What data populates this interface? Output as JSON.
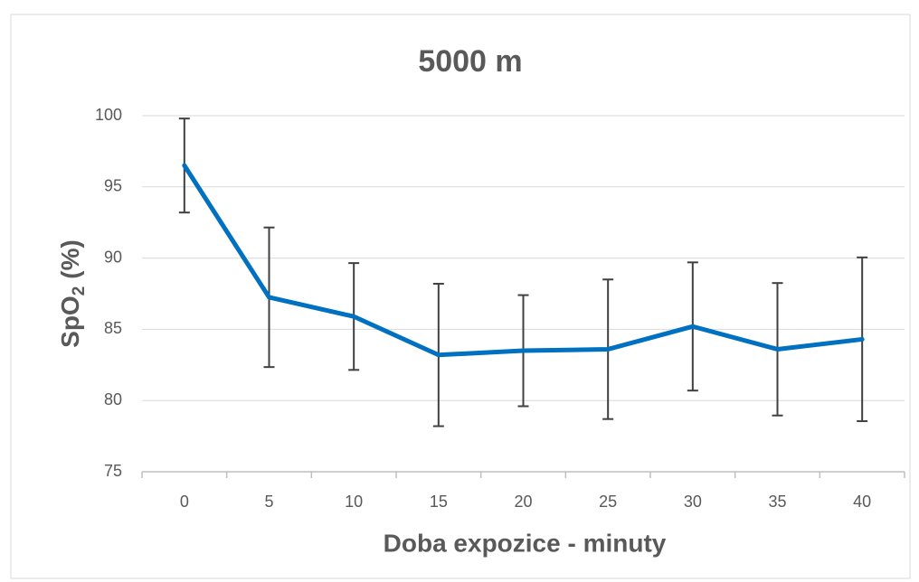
{
  "chart_data": {
    "type": "line",
    "title": "5000 m",
    "x_label": "Doba expozice - minuty",
    "y_label": [
      "SpO",
      "2",
      "(%)"
    ],
    "categories": [
      "0",
      "5",
      "10",
      "15",
      "20",
      "25",
      "30",
      "35",
      "40"
    ],
    "series": [
      {
        "name": "SpO2",
        "color": "#0070c0",
        "values": [
          96.5,
          87.25,
          85.9,
          83.2,
          83.5,
          83.6,
          85.2,
          83.6,
          84.3
        ],
        "errors": [
          3.3,
          4.9,
          3.75,
          5.0,
          3.9,
          4.9,
          4.5,
          4.65,
          5.75
        ]
      }
    ],
    "error_color": "#404040",
    "ylim": [
      75,
      100
    ],
    "yticks": [
      75,
      80,
      85,
      90,
      95,
      100
    ],
    "grid": true
  }
}
